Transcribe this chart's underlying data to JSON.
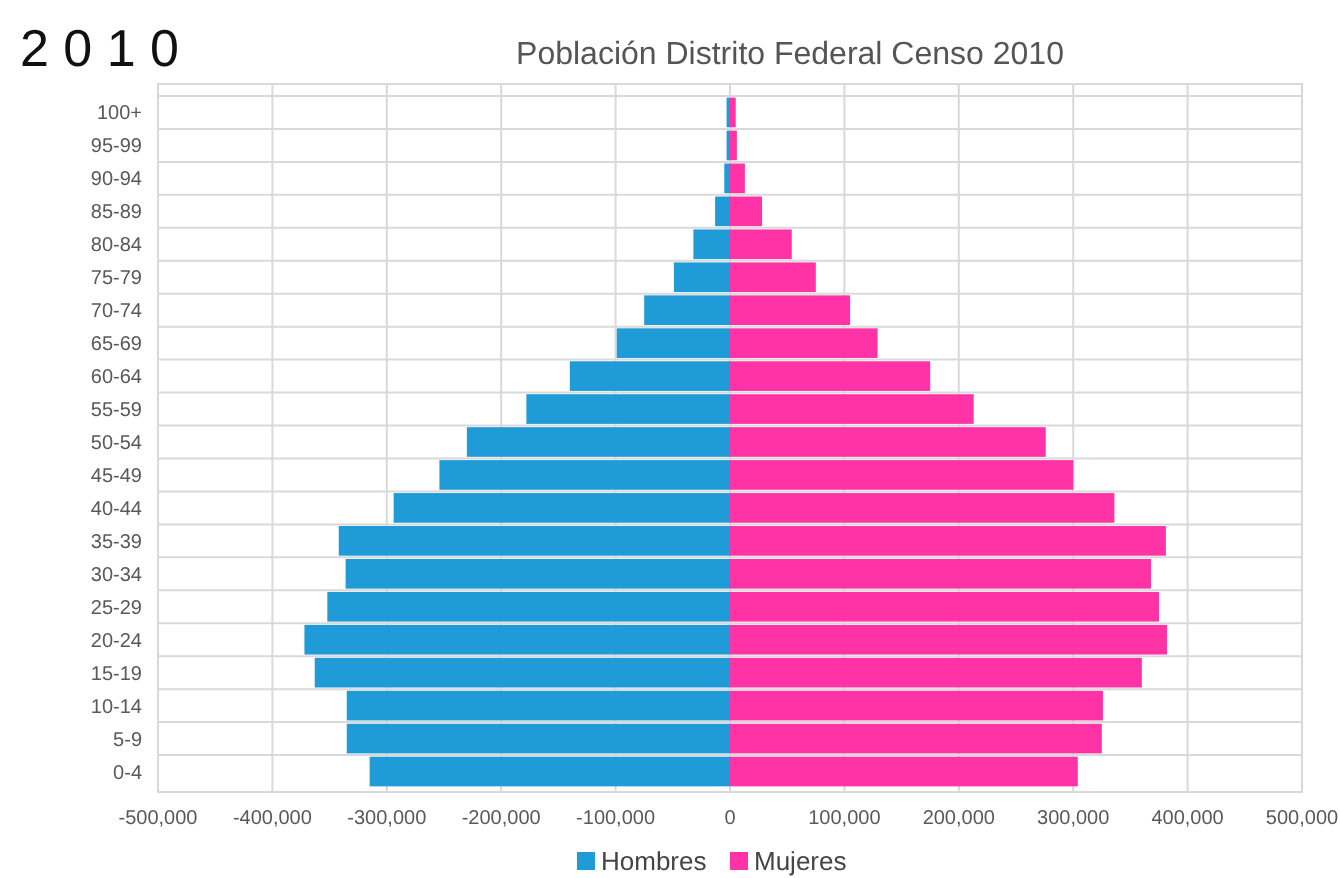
{
  "chart_data": {
    "type": "bar",
    "orientation": "horizontal",
    "stacked": true,
    "title": "Población Distrito Federal Censo 2010",
    "annotations": [
      "2 0 1 0"
    ],
    "categories": [
      "100+",
      "95-99",
      "90-94",
      "85-89",
      "80-84",
      "75-79",
      "70-74",
      "65-69",
      "60-64",
      "55-59",
      "50-54",
      "45-49",
      "40-44",
      "35-39",
      "30-34",
      "25-29",
      "20-24",
      "15-19",
      "10-14",
      "5-9",
      "0-4"
    ],
    "series": [
      {
        "name": "Hombres",
        "color": "#1f9bd7",
        "values": [
          -3000,
          -3000,
          -5000,
          -13000,
          -32000,
          -49000,
          -75000,
          -99000,
          -140000,
          -178000,
          -230000,
          -254000,
          -294000,
          -342000,
          -336000,
          -352000,
          -372000,
          -363000,
          -335000,
          -335000,
          -315000
        ]
      },
      {
        "name": "Mujeres",
        "color": "#ff33a6",
        "values": [
          5000,
          6000,
          13000,
          28000,
          54000,
          75000,
          105000,
          129000,
          175000,
          213000,
          276000,
          300000,
          336000,
          381000,
          368000,
          375000,
          382000,
          360000,
          326000,
          325000,
          304000
        ]
      }
    ],
    "xlim": [
      -500000,
      500000
    ],
    "xticks": [
      {
        "value": -500000,
        "label": "-500,000"
      },
      {
        "value": -400000,
        "label": "-400,000"
      },
      {
        "value": -300000,
        "label": "-300,000"
      },
      {
        "value": -200000,
        "label": "-200,000"
      },
      {
        "value": -100000,
        "label": "-100,000"
      },
      0,
      {
        "value": 100000,
        "label": "100,000"
      },
      {
        "value": 200000,
        "label": "200,000"
      },
      {
        "value": 300000,
        "label": "300,000"
      },
      {
        "value": 400000,
        "label": "400,000"
      },
      {
        "value": 500000,
        "label": "500,000"
      }
    ],
    "grid": true,
    "legend": "bottom"
  }
}
